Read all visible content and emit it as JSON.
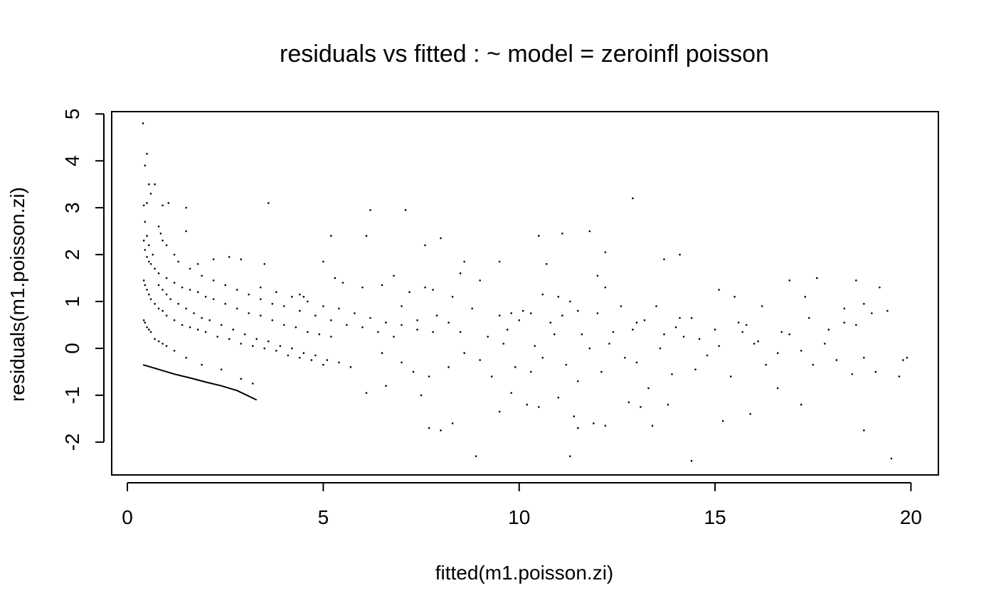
{
  "chart_data": {
    "type": "scatter",
    "title": "residuals vs fitted : ~ model = zeroinfl poisson",
    "xlabel": "fitted(m1.poisson.zi)",
    "ylabel": "residuals(m1.poisson.zi)",
    "xlim": [
      -0.4,
      20.7
    ],
    "ylim": [
      -2.7,
      5.05
    ],
    "xticks": [
      0,
      5,
      10,
      15,
      20
    ],
    "yticks": [
      -2,
      -1,
      0,
      1,
      2,
      3,
      4,
      5
    ],
    "grid": false,
    "legend": "none",
    "marker": "dot",
    "series": [
      {
        "points": [
          [
            0.4,
            4.8
          ],
          [
            0.5,
            4.15
          ],
          [
            0.45,
            3.9
          ],
          [
            0.55,
            3.5
          ],
          [
            0.5,
            3.1
          ],
          [
            0.6,
            3.3
          ],
          [
            0.7,
            3.5
          ],
          [
            0.9,
            3.05
          ],
          [
            1.05,
            3.1
          ],
          [
            1.5,
            3.0
          ],
          [
            3.6,
            3.1
          ],
          [
            6.2,
            2.95
          ],
          [
            7.1,
            2.95
          ],
          [
            12.9,
            3.2
          ],
          [
            0.42,
            3.05
          ],
          [
            0.45,
            2.7
          ],
          [
            0.5,
            2.4
          ],
          [
            0.55,
            2.2
          ],
          [
            0.65,
            2.0
          ],
          [
            0.8,
            2.6
          ],
          [
            0.85,
            2.45
          ],
          [
            0.9,
            2.3
          ],
          [
            1.0,
            2.2
          ],
          [
            1.2,
            2.0
          ],
          [
            1.5,
            2.5
          ],
          [
            1.8,
            1.8
          ],
          [
            2.2,
            1.9
          ],
          [
            2.6,
            1.95
          ],
          [
            2.9,
            1.9
          ],
          [
            5.0,
            1.85
          ],
          [
            5.2,
            2.4
          ],
          [
            6.1,
            2.4
          ],
          [
            8.0,
            2.35
          ],
          [
            7.6,
            2.2
          ],
          [
            10.5,
            2.4
          ],
          [
            11.1,
            2.45
          ],
          [
            11.8,
            2.5
          ],
          [
            12.2,
            2.05
          ],
          [
            14.1,
            2.0
          ],
          [
            13.7,
            1.9
          ],
          [
            9.5,
            1.85
          ],
          [
            10.7,
            1.8
          ],
          [
            0.42,
            2.3
          ],
          [
            0.45,
            2.1
          ],
          [
            0.5,
            1.95
          ],
          [
            0.55,
            1.85
          ],
          [
            0.6,
            1.8
          ],
          [
            0.7,
            1.7
          ],
          [
            0.8,
            1.6
          ],
          [
            1.0,
            1.5
          ],
          [
            1.2,
            1.4
          ],
          [
            1.4,
            1.3
          ],
          [
            1.6,
            1.25
          ],
          [
            1.8,
            1.2
          ],
          [
            2.0,
            1.1
          ],
          [
            2.2,
            1.05
          ],
          [
            2.5,
            0.95
          ],
          [
            2.8,
            0.85
          ],
          [
            3.1,
            0.75
          ],
          [
            3.4,
            0.7
          ],
          [
            3.7,
            0.6
          ],
          [
            4.0,
            0.5
          ],
          [
            4.3,
            0.45
          ],
          [
            4.6,
            0.35
          ],
          [
            4.9,
            0.3
          ],
          [
            5.2,
            0.25
          ],
          [
            0.42,
            1.45
          ],
          [
            0.45,
            1.35
          ],
          [
            0.5,
            1.25
          ],
          [
            0.55,
            1.15
          ],
          [
            0.6,
            1.05
          ],
          [
            0.7,
            0.95
          ],
          [
            0.8,
            0.85
          ],
          [
            0.9,
            0.8
          ],
          [
            1.0,
            0.7
          ],
          [
            1.2,
            0.6
          ],
          [
            1.4,
            0.5
          ],
          [
            1.6,
            0.45
          ],
          [
            1.8,
            0.4
          ],
          [
            2.0,
            0.35
          ],
          [
            2.3,
            0.25
          ],
          [
            2.6,
            0.2
          ],
          [
            2.9,
            0.1
          ],
          [
            3.2,
            0.05
          ],
          [
            3.5,
            0.0
          ],
          [
            3.8,
            -0.05
          ],
          [
            4.1,
            -0.15
          ],
          [
            4.4,
            -0.2
          ],
          [
            4.7,
            -0.25
          ],
          [
            5.0,
            -0.35
          ],
          [
            0.8,
            1.35
          ],
          [
            0.9,
            1.25
          ],
          [
            1.0,
            1.15
          ],
          [
            1.1,
            1.05
          ],
          [
            1.3,
            0.95
          ],
          [
            1.5,
            0.85
          ],
          [
            1.7,
            0.75
          ],
          [
            1.9,
            0.65
          ],
          [
            2.1,
            0.6
          ],
          [
            2.4,
            0.5
          ],
          [
            2.7,
            0.4
          ],
          [
            3.0,
            0.3
          ],
          [
            3.3,
            0.2
          ],
          [
            3.6,
            0.15
          ],
          [
            3.9,
            0.05
          ],
          [
            4.2,
            0.0
          ],
          [
            4.5,
            -0.1
          ],
          [
            4.8,
            -0.15
          ],
          [
            5.1,
            -0.25
          ],
          [
            5.4,
            -0.3
          ],
          [
            5.7,
            -0.4
          ],
          [
            0.42,
            0.6
          ],
          [
            0.45,
            0.55
          ],
          [
            0.5,
            0.45
          ],
          [
            0.55,
            0.4
          ],
          [
            0.6,
            0.35
          ],
          [
            0.7,
            0.2
          ],
          [
            0.8,
            0.15
          ],
          [
            0.9,
            0.1
          ],
          [
            1.0,
            0.05
          ],
          [
            1.2,
            -0.05
          ],
          [
            1.5,
            -0.2
          ],
          [
            1.9,
            -0.35
          ],
          [
            2.4,
            -0.45
          ],
          [
            2.9,
            -0.65
          ],
          [
            3.2,
            -0.75
          ],
          [
            1.3,
            1.85
          ],
          [
            1.6,
            1.7
          ],
          [
            1.9,
            1.55
          ],
          [
            2.2,
            1.45
          ],
          [
            2.5,
            1.35
          ],
          [
            2.8,
            1.25
          ],
          [
            3.1,
            1.15
          ],
          [
            3.4,
            1.05
          ],
          [
            3.7,
            0.95
          ],
          [
            4.0,
            0.9
          ],
          [
            4.4,
            0.8
          ],
          [
            4.8,
            0.7
          ],
          [
            5.2,
            0.6
          ],
          [
            5.6,
            0.5
          ],
          [
            6.0,
            0.45
          ],
          [
            6.4,
            0.35
          ],
          [
            6.8,
            0.25
          ],
          [
            3.4,
            1.3
          ],
          [
            3.8,
            1.2
          ],
          [
            4.2,
            1.1
          ],
          [
            4.6,
            1.0
          ],
          [
            5.0,
            0.9
          ],
          [
            5.4,
            0.85
          ],
          [
            5.8,
            0.75
          ],
          [
            6.2,
            0.65
          ],
          [
            6.6,
            0.55
          ],
          [
            7.0,
            0.5
          ],
          [
            7.4,
            0.4
          ],
          [
            7.8,
            0.35
          ],
          [
            3.5,
            1.8
          ],
          [
            4.4,
            1.15
          ],
          [
            4.5,
            1.1
          ],
          [
            5.3,
            1.5
          ],
          [
            5.5,
            1.4
          ],
          [
            6.0,
            1.3
          ],
          [
            6.5,
            1.35
          ],
          [
            6.8,
            1.55
          ],
          [
            7.2,
            1.2
          ],
          [
            7.6,
            1.3
          ],
          [
            7.8,
            1.25
          ],
          [
            8.3,
            1.1
          ],
          [
            8.5,
            1.6
          ],
          [
            8.6,
            1.85
          ],
          [
            9.0,
            1.45
          ],
          [
            9.5,
            0.7
          ],
          [
            9.8,
            0.75
          ],
          [
            10.1,
            0.8
          ],
          [
            10.3,
            0.75
          ],
          [
            10.6,
            1.15
          ],
          [
            11.0,
            1.1
          ],
          [
            11.3,
            1.0
          ],
          [
            11.5,
            0.8
          ],
          [
            12.0,
            1.55
          ],
          [
            12.2,
            1.3
          ],
          [
            12.6,
            0.9
          ],
          [
            13.0,
            0.55
          ],
          [
            13.5,
            0.9
          ],
          [
            14.0,
            0.45
          ],
          [
            14.4,
            0.65
          ],
          [
            15.1,
            1.25
          ],
          [
            15.5,
            1.1
          ],
          [
            15.6,
            0.55
          ],
          [
            16.2,
            0.9
          ],
          [
            16.9,
            1.45
          ],
          [
            17.3,
            1.1
          ],
          [
            17.6,
            1.5
          ],
          [
            18.3,
            0.85
          ],
          [
            18.6,
            1.45
          ],
          [
            18.8,
            0.95
          ],
          [
            19.2,
            1.3
          ],
          [
            19.4,
            0.8
          ],
          [
            6.1,
            -0.95
          ],
          [
            6.6,
            -0.8
          ],
          [
            7.5,
            -1.0
          ],
          [
            7.7,
            -1.7
          ],
          [
            8.0,
            -1.75
          ],
          [
            8.3,
            -1.6
          ],
          [
            8.9,
            -2.3
          ],
          [
            9.5,
            -1.35
          ],
          [
            9.8,
            -0.95
          ],
          [
            10.2,
            -1.2
          ],
          [
            10.5,
            -1.25
          ],
          [
            11.0,
            -1.05
          ],
          [
            11.4,
            -1.45
          ],
          [
            11.5,
            -1.7
          ],
          [
            11.9,
            -1.6
          ],
          [
            12.2,
            -1.65
          ],
          [
            11.3,
            -2.3
          ],
          [
            12.8,
            -1.15
          ],
          [
            13.1,
            -1.25
          ],
          [
            13.4,
            -1.65
          ],
          [
            13.8,
            -1.2
          ],
          [
            14.4,
            -2.4
          ],
          [
            15.2,
            -1.55
          ],
          [
            15.9,
            -1.4
          ],
          [
            16.6,
            -0.85
          ],
          [
            17.2,
            -1.2
          ],
          [
            18.8,
            -1.75
          ],
          [
            19.5,
            -2.35
          ],
          [
            19.7,
            -0.6
          ],
          [
            19.9,
            -0.2
          ],
          [
            6.5,
            -0.1
          ],
          [
            7.0,
            -0.3
          ],
          [
            7.3,
            -0.5
          ],
          [
            7.7,
            -0.6
          ],
          [
            8.2,
            -0.4
          ],
          [
            8.6,
            -0.1
          ],
          [
            9.0,
            -0.25
          ],
          [
            9.3,
            -0.6
          ],
          [
            9.6,
            0.1
          ],
          [
            9.9,
            -0.4
          ],
          [
            10.3,
            -0.5
          ],
          [
            10.6,
            -0.2
          ],
          [
            10.9,
            0.3
          ],
          [
            11.2,
            -0.35
          ],
          [
            11.5,
            -0.7
          ],
          [
            11.8,
            0.0
          ],
          [
            12.1,
            -0.5
          ],
          [
            12.4,
            0.35
          ],
          [
            12.7,
            -0.2
          ],
          [
            13.0,
            -0.3
          ],
          [
            13.3,
            -0.85
          ],
          [
            13.6,
            0.0
          ],
          [
            13.9,
            -0.55
          ],
          [
            14.2,
            0.25
          ],
          [
            14.5,
            -0.45
          ],
          [
            14.8,
            -0.15
          ],
          [
            15.1,
            0.05
          ],
          [
            15.4,
            -0.6
          ],
          [
            15.7,
            0.35
          ],
          [
            16.0,
            0.1
          ],
          [
            16.3,
            -0.35
          ],
          [
            16.6,
            -0.1
          ],
          [
            16.9,
            0.3
          ],
          [
            17.2,
            -0.05
          ],
          [
            17.5,
            -0.35
          ],
          [
            17.8,
            0.1
          ],
          [
            18.1,
            -0.25
          ],
          [
            18.5,
            -0.55
          ],
          [
            18.8,
            -0.2
          ],
          [
            19.1,
            -0.5
          ],
          [
            19.8,
            -0.25
          ],
          [
            7.0,
            0.9
          ],
          [
            7.4,
            0.6
          ],
          [
            7.9,
            0.7
          ],
          [
            8.2,
            0.55
          ],
          [
            8.5,
            0.35
          ],
          [
            8.8,
            0.85
          ],
          [
            9.2,
            0.25
          ],
          [
            9.7,
            0.4
          ],
          [
            10.0,
            0.6
          ],
          [
            10.4,
            0.05
          ],
          [
            10.8,
            0.55
          ],
          [
            11.1,
            0.7
          ],
          [
            11.6,
            0.3
          ],
          [
            12.0,
            0.75
          ],
          [
            12.3,
            0.1
          ],
          [
            12.9,
            0.4
          ],
          [
            13.2,
            0.6
          ],
          [
            13.7,
            0.3
          ],
          [
            14.1,
            0.65
          ],
          [
            14.6,
            0.2
          ],
          [
            15.0,
            0.4
          ],
          [
            15.8,
            0.5
          ],
          [
            16.1,
            0.15
          ],
          [
            16.7,
            0.35
          ],
          [
            17.4,
            0.65
          ],
          [
            17.9,
            0.4
          ],
          [
            18.3,
            0.55
          ],
          [
            18.6,
            0.5
          ],
          [
            19.0,
            0.75
          ]
        ],
        "curves": [
          [
            [
              0.4,
              -0.35
            ],
            [
              0.8,
              -0.45
            ],
            [
              1.2,
              -0.55
            ],
            [
              1.6,
              -0.63
            ],
            [
              2.0,
              -0.72
            ],
            [
              2.4,
              -0.8
            ],
            [
              2.8,
              -0.9
            ],
            [
              3.3,
              -1.1
            ]
          ]
        ]
      }
    ]
  }
}
